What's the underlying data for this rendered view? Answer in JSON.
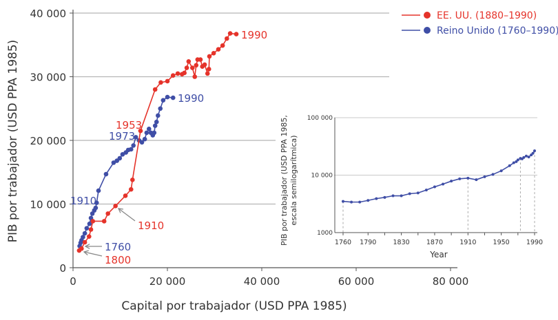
{
  "colors": {
    "us": "#e5332a",
    "uk": "#3f4ea6",
    "grid": "#b5b5b5",
    "axis": "#555555",
    "arrow": "#888888"
  },
  "chart_data": [
    {
      "type": "line",
      "xlabel": "Capital por trabajador (USD PPA 1985)",
      "ylabel": "PIB por trabajador (USD PPA 1985)",
      "xlim": [
        0,
        80000
      ],
      "ylim": [
        0,
        40000
      ],
      "xticks": [
        "0",
        "20 000",
        "40 000",
        "60 000",
        "80 000"
      ],
      "xtick_values": [
        0,
        20000,
        40000,
        60000,
        80000
      ],
      "yticks": [
        "0",
        "10 000",
        "20 000",
        "30 000",
        "40 000"
      ],
      "ytick_values": [
        0,
        10000,
        20000,
        30000,
        40000
      ],
      "grid": "horizontal",
      "legend": "top-right",
      "series": [
        {
          "name": "EE. UU. (1880–1990)",
          "color": "#e5332a",
          "points": [
            [
              1300,
              2700
            ],
            [
              1800,
              3000
            ],
            [
              2500,
              4000
            ],
            [
              3400,
              4900
            ],
            [
              3800,
              6000
            ],
            [
              4200,
              7300
            ],
            [
              6600,
              7300
            ],
            [
              7400,
              8500
            ],
            [
              9000,
              9700
            ],
            [
              11100,
              11300
            ],
            [
              12300,
              12300
            ],
            [
              12600,
              13800
            ],
            [
              14300,
              21500
            ],
            [
              17400,
              28000
            ],
            [
              18600,
              29100
            ],
            [
              20000,
              29300
            ],
            [
              21200,
              30200
            ],
            [
              22200,
              30500
            ],
            [
              23100,
              30400
            ],
            [
              23600,
              30600
            ],
            [
              24100,
              31400
            ],
            [
              24500,
              32400
            ],
            [
              25300,
              31400
            ],
            [
              25800,
              30000
            ],
            [
              26100,
              31800
            ],
            [
              26400,
              32700
            ],
            [
              27000,
              32700
            ],
            [
              27400,
              31600
            ],
            [
              27900,
              31900
            ],
            [
              28500,
              30500
            ],
            [
              28800,
              31200
            ],
            [
              28900,
              33200
            ],
            [
              29800,
              33700
            ],
            [
              30800,
              34300
            ],
            [
              31700,
              34900
            ],
            [
              32600,
              36000
            ],
            [
              33300,
              36800
            ],
            [
              34600,
              36700
            ]
          ]
        },
        {
          "name": "Reino Unido (1760–1990)",
          "color": "#3f4ea6",
          "points": [
            [
              1400,
              3400
            ],
            [
              1600,
              3900
            ],
            [
              1800,
              4300
            ],
            [
              2100,
              4800
            ],
            [
              2500,
              5400
            ],
            [
              2900,
              6200
            ],
            [
              3500,
              6900
            ],
            [
              3800,
              7800
            ],
            [
              4100,
              8500
            ],
            [
              4500,
              9000
            ],
            [
              4800,
              9400
            ],
            [
              5000,
              10200
            ],
            [
              5400,
              12100
            ],
            [
              7000,
              14700
            ],
            [
              8600,
              16500
            ],
            [
              9300,
              16800
            ],
            [
              9900,
              17200
            ],
            [
              10500,
              17800
            ],
            [
              11200,
              18100
            ],
            [
              11700,
              18500
            ],
            [
              12300,
              18600
            ],
            [
              12800,
              19200
            ],
            [
              13300,
              20500
            ],
            [
              14000,
              20000
            ],
            [
              14600,
              19700
            ],
            [
              15200,
              20200
            ],
            [
              15600,
              21200
            ],
            [
              16100,
              21800
            ],
            [
              16500,
              21200
            ],
            [
              16900,
              20800
            ],
            [
              17200,
              21200
            ],
            [
              17400,
              22300
            ],
            [
              17700,
              22900
            ],
            [
              18000,
              23900
            ],
            [
              18500,
              25000
            ],
            [
              19100,
              26300
            ],
            [
              20000,
              26800
            ],
            [
              21200,
              26700
            ]
          ]
        }
      ],
      "annotations": [
        {
          "text": "1990",
          "series": "us"
        },
        {
          "text": "1990",
          "series": "uk"
        },
        {
          "text": "1953",
          "series": "us"
        },
        {
          "text": "1973",
          "series": "uk"
        },
        {
          "text": "1910",
          "series": "uk"
        },
        {
          "text": "1910",
          "series": "us"
        },
        {
          "text": "1760",
          "series": "uk"
        },
        {
          "text": "1800",
          "series": "us"
        }
      ]
    },
    {
      "type": "line",
      "xlabel": "Year",
      "ylabel": "PIB por trabajador (USD PPA 1985, escala semilogarítmica)",
      "ylabel_lines": [
        "PIB por trabajador (USD PPA 1985,",
        "escala semilogarítmica)"
      ],
      "yscale": "log",
      "xlim": [
        1760,
        1990
      ],
      "ylim": [
        1000,
        100000
      ],
      "xticks": [
        "1760",
        "1790",
        "1830",
        "1870",
        "1910",
        "1950",
        "1990"
      ],
      "xtick_values": [
        1760,
        1790,
        1830,
        1870,
        1910,
        1950,
        1990
      ],
      "yticks": [
        "1000",
        "10 000",
        "100 000"
      ],
      "ytick_values": [
        1000,
        10000,
        100000
      ],
      "grid": "horizontal",
      "reference_years": [
        1760,
        1910,
        1973,
        1990
      ],
      "series": [
        {
          "color": "#3f4ea6",
          "points": [
            [
              1760,
              3500
            ],
            [
              1770,
              3400
            ],
            [
              1780,
              3400
            ],
            [
              1790,
              3630
            ],
            [
              1800,
              3900
            ],
            [
              1810,
              4100
            ],
            [
              1820,
              4370
            ],
            [
              1830,
              4370
            ],
            [
              1840,
              4750
            ],
            [
              1850,
              4900
            ],
            [
              1860,
              5500
            ],
            [
              1870,
              6250
            ],
            [
              1880,
              6980
            ],
            [
              1890,
              7870
            ],
            [
              1900,
              8630
            ],
            [
              1910,
              8870
            ],
            [
              1920,
              8320
            ],
            [
              1930,
              9380
            ],
            [
              1940,
              10300
            ],
            [
              1950,
              11900
            ],
            [
              1960,
              14600
            ],
            [
              1965,
              16400
            ],
            [
              1968,
              17200
            ],
            [
              1970,
              18400
            ],
            [
              1973,
              19600
            ],
            [
              1975,
              19200
            ],
            [
              1977,
              20300
            ],
            [
              1980,
              21500
            ],
            [
              1983,
              20700
            ],
            [
              1986,
              22500
            ],
            [
              1988,
              24000
            ],
            [
              1990,
              26500
            ]
          ]
        }
      ]
    }
  ]
}
